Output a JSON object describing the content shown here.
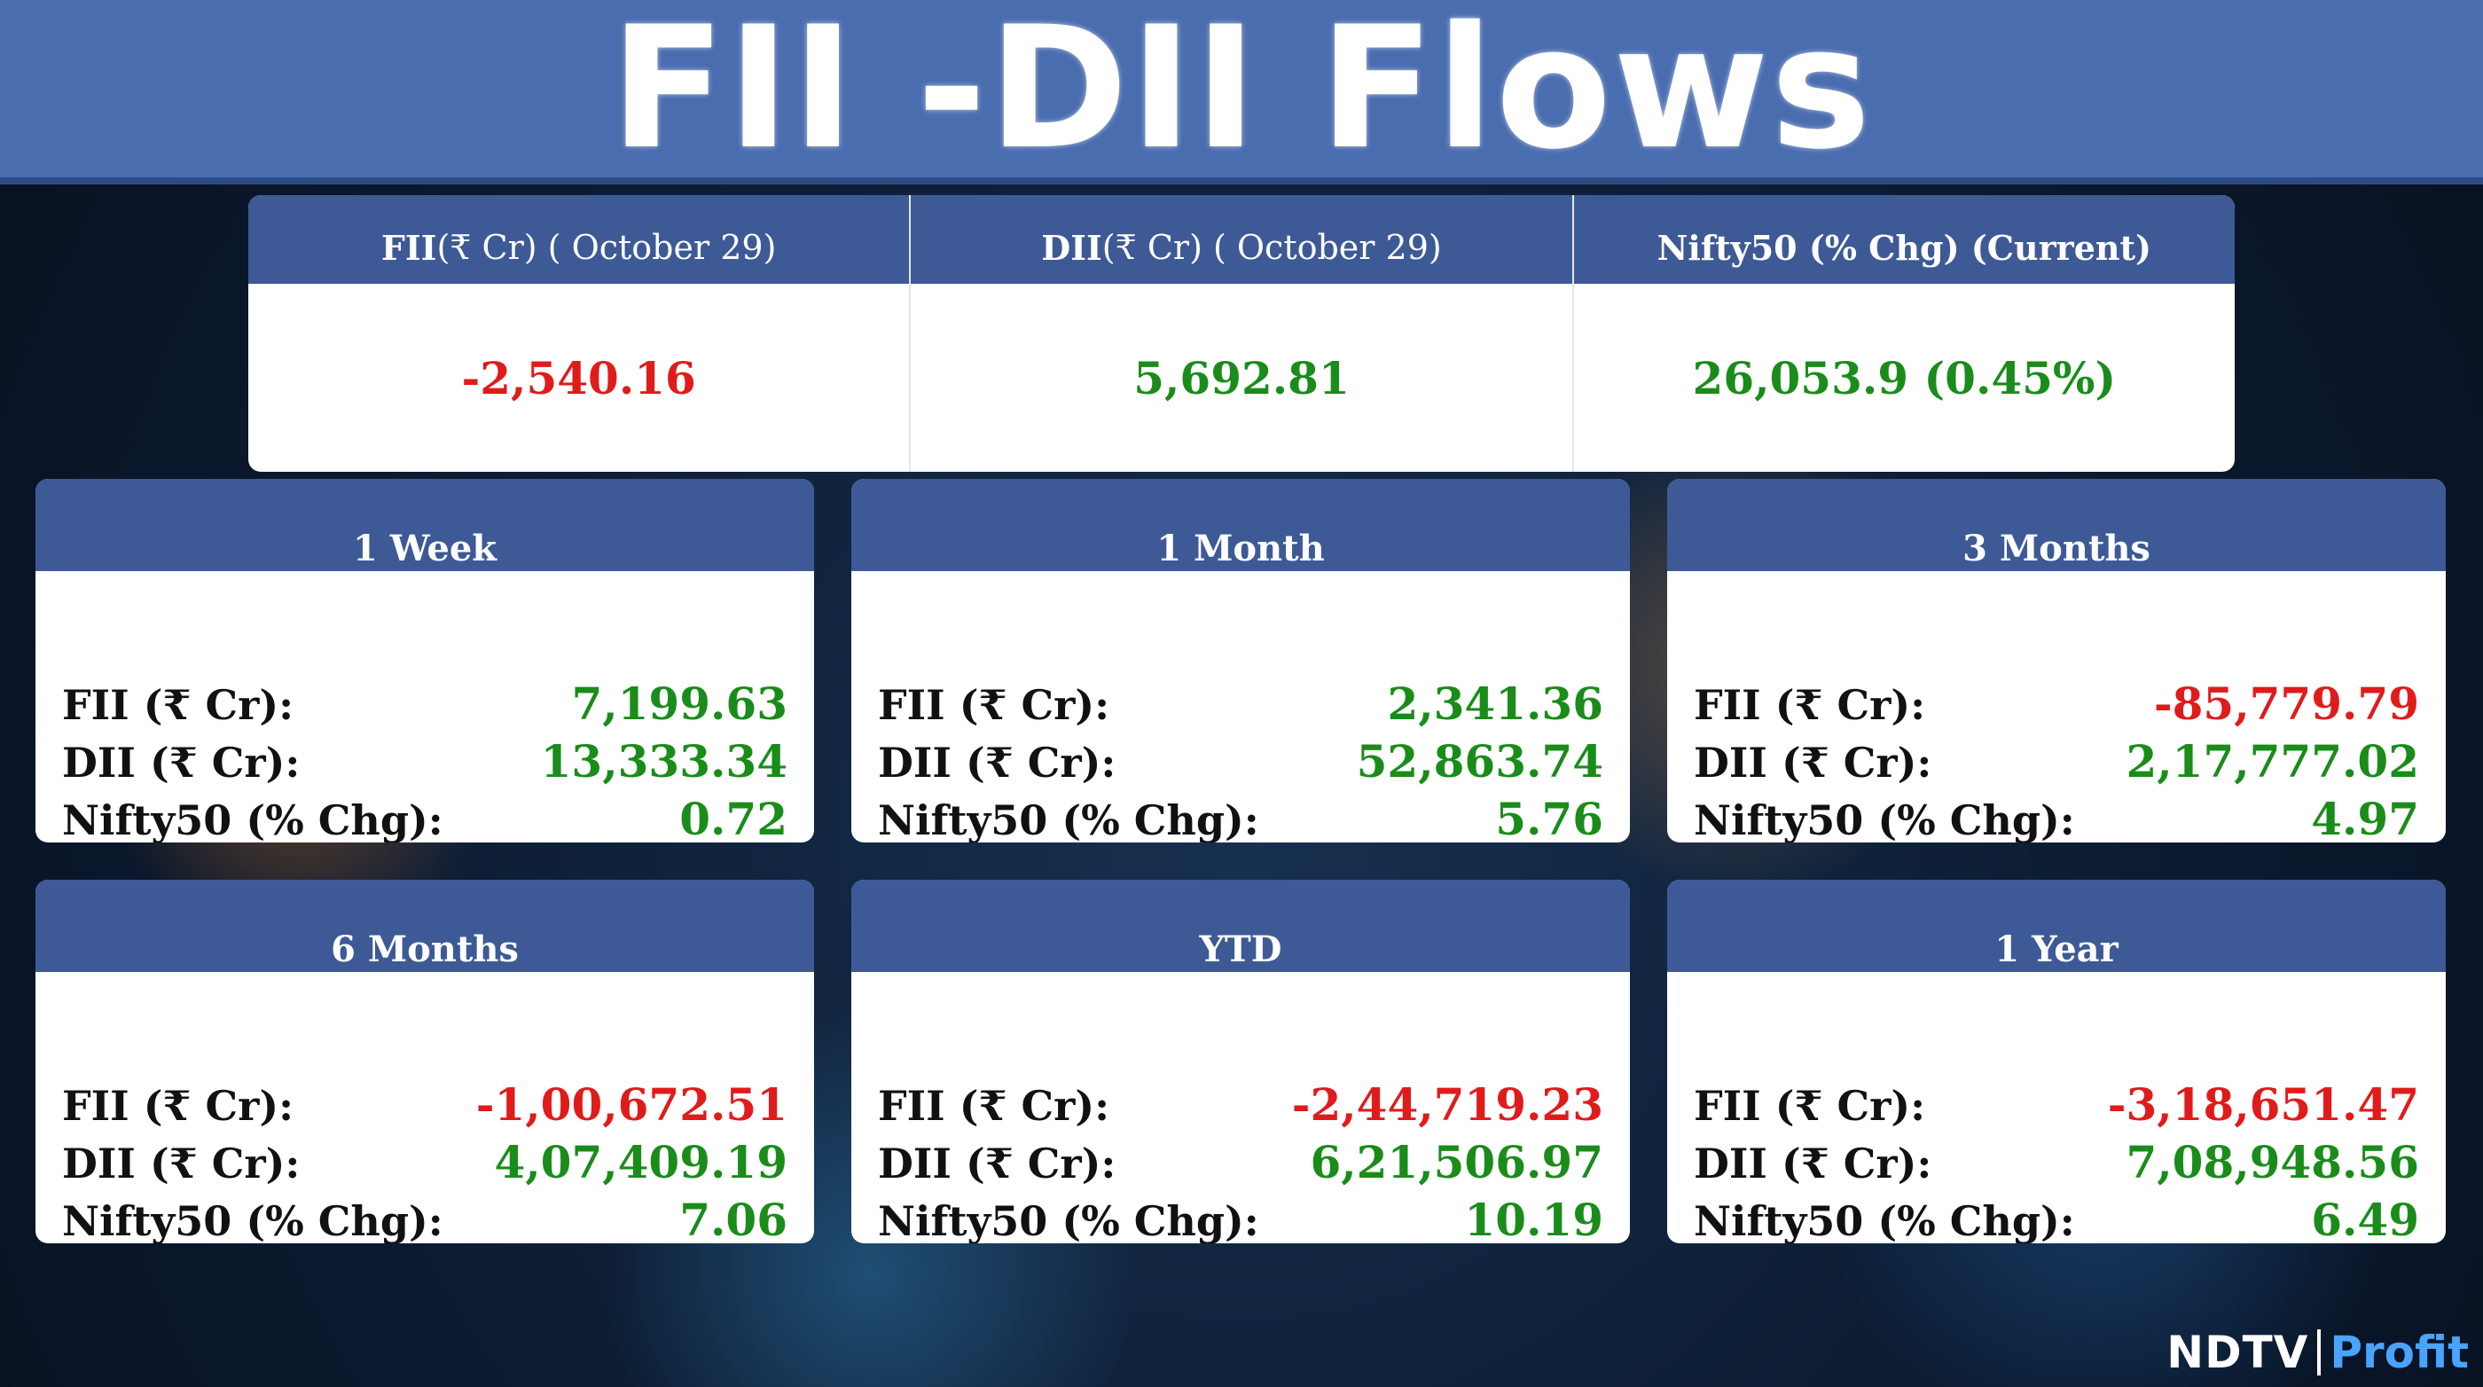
{
  "title": "FII -DII Flows",
  "summary": {
    "columns": [
      {
        "label_bold": "FII",
        "label_rest": "(₹ Cr) ( October 29)",
        "value": "-2,540.16",
        "color": "#e01b1b"
      },
      {
        "label_bold": "DII",
        "label_rest": "(₹ Cr) ( October 29)",
        "value": "5,692.81",
        "color": "#1a8c1a"
      },
      {
        "label_bold": "Nifty50 (% Chg) (Current)",
        "label_rest": "",
        "value": "26,053.9 (0.45%)",
        "color": "#1a8c1a"
      }
    ]
  },
  "periods": [
    {
      "name": "1 Week",
      "fii": "7,199.63",
      "dii": "13,333.34",
      "nifty": "0.72"
    },
    {
      "name": "1 Month",
      "fii": "2,341.36",
      "dii": "52,863.74",
      "nifty": "5.76"
    },
    {
      "name": "3 Months",
      "fii": "-85,779.79",
      "dii": "2,17,777.02",
      "nifty": "4.97"
    },
    {
      "name": "6 Months",
      "fii": "-1,00,672.51",
      "dii": "4,07,409.19",
      "nifty": "7.06"
    },
    {
      "name": "YTD",
      "fii": "-2,44,719.23",
      "dii": "6,21,506.97",
      "nifty": "10.19"
    },
    {
      "name": "1 Year",
      "fii": "-3,18,651.47",
      "dii": "7,08,948.56",
      "nifty": "6.49"
    }
  ],
  "labels": {
    "fii": "FII (₹ Cr):",
    "dii": "DII (₹ Cr):",
    "nifty": "Nifty50 (% Chg):"
  },
  "colors": {
    "positive": "#1a8c1a",
    "negative": "#e01b1b",
    "header": "#3d5a96",
    "banner": "#4a6db0"
  },
  "logo": {
    "ndtv": "NDTV",
    "profit": "Profit"
  }
}
